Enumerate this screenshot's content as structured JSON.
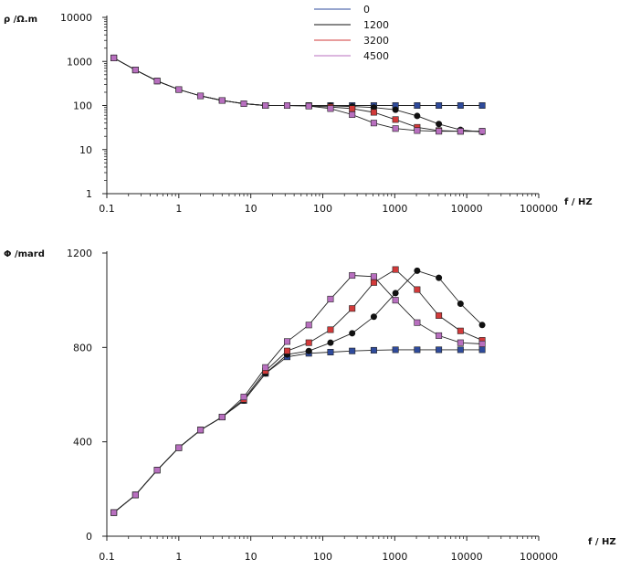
{
  "legend": [
    {
      "label": "0",
      "color": "#2f4b9c"
    },
    {
      "label": "1200",
      "color": "#111111"
    },
    {
      "label": "3200",
      "color": "#d23a3a"
    },
    {
      "label": "4500",
      "color": "#b86fbf"
    }
  ],
  "chart_data": [
    {
      "type": "line",
      "xscale": "log",
      "yscale": "log",
      "ylabel": "ρ /Ω.m",
      "xlabel": "f / HZ",
      "xlim": [
        0.1,
        100000
      ],
      "ylim": [
        1,
        10000
      ],
      "xtick_labels": [
        "0.1",
        "1",
        "10",
        "100",
        "1000",
        "10000",
        "100000"
      ],
      "ytick_labels": [
        "10000",
        "1000",
        "100",
        "10",
        "1"
      ],
      "series": [
        {
          "name": "0",
          "color": "#2f4b9c",
          "marker": "square",
          "x": [
            0.125,
            0.25,
            0.5,
            1,
            2,
            4,
            8,
            16,
            32,
            64,
            128,
            256,
            512,
            1024,
            2048,
            4096,
            8192,
            16384
          ],
          "y": [
            1200,
            640,
            360,
            230,
            165,
            130,
            110,
            100,
            100,
            100,
            100,
            100,
            100,
            100,
            100,
            100,
            100,
            100
          ]
        },
        {
          "name": "1200",
          "color": "#111111",
          "marker": "circle",
          "x": [
            0.125,
            0.25,
            0.5,
            1,
            2,
            4,
            8,
            16,
            32,
            64,
            128,
            256,
            512,
            1024,
            2048,
            4096,
            8192,
            16384
          ],
          "y": [
            1200,
            640,
            360,
            230,
            165,
            130,
            110,
            100,
            100,
            100,
            98,
            95,
            90,
            80,
            58,
            38,
            28,
            25
          ]
        },
        {
          "name": "3200",
          "color": "#d23a3a",
          "marker": "square",
          "x": [
            0.125,
            0.25,
            0.5,
            1,
            2,
            4,
            8,
            16,
            32,
            64,
            128,
            256,
            512,
            1024,
            2048,
            4096,
            8192,
            16384
          ],
          "y": [
            1200,
            640,
            360,
            230,
            165,
            130,
            110,
            100,
            100,
            98,
            92,
            85,
            70,
            48,
            32,
            27,
            26,
            26
          ]
        },
        {
          "name": "4500",
          "color": "#b86fbf",
          "marker": "square",
          "x": [
            0.125,
            0.25,
            0.5,
            1,
            2,
            4,
            8,
            16,
            32,
            64,
            128,
            256,
            512,
            1024,
            2048,
            4096,
            8192,
            16384
          ],
          "y": [
            1200,
            640,
            360,
            230,
            165,
            130,
            110,
            100,
            100,
            97,
            85,
            62,
            40,
            30,
            27,
            26,
            26,
            26
          ]
        }
      ]
    },
    {
      "type": "line",
      "xscale": "log",
      "yscale": "linear",
      "ylabel": "Φ /mard",
      "xlabel": "f / HZ",
      "xlim": [
        0.1,
        100000
      ],
      "ylim": [
        0,
        1200
      ],
      "xtick_labels": [
        "0.1",
        "1",
        "10",
        "100",
        "1000",
        "10000",
        "100000"
      ],
      "ytick_labels": [
        "1200",
        "800",
        "400",
        "0"
      ],
      "series": [
        {
          "name": "0",
          "color": "#2f4b9c",
          "marker": "square",
          "x": [
            0.125,
            0.25,
            0.5,
            1,
            2,
            4,
            8,
            16,
            32,
            64,
            128,
            256,
            512,
            1024,
            2048,
            4096,
            8192,
            16384
          ],
          "y": [
            100,
            175,
            280,
            375,
            450,
            505,
            575,
            690,
            760,
            775,
            780,
            785,
            788,
            790,
            790,
            790,
            790,
            790
          ]
        },
        {
          "name": "1200",
          "color": "#111111",
          "marker": "circle",
          "x": [
            0.125,
            0.25,
            0.5,
            1,
            2,
            4,
            8,
            16,
            32,
            64,
            128,
            256,
            512,
            1024,
            2048,
            4096,
            8192,
            16384
          ],
          "y": [
            100,
            175,
            280,
            375,
            450,
            505,
            575,
            690,
            770,
            785,
            820,
            860,
            930,
            1030,
            1125,
            1095,
            985,
            895
          ]
        },
        {
          "name": "3200",
          "color": "#d23a3a",
          "marker": "square",
          "x": [
            0.125,
            0.25,
            0.5,
            1,
            2,
            4,
            8,
            16,
            32,
            64,
            128,
            256,
            512,
            1024,
            2048,
            4096,
            8192,
            16384
          ],
          "y": [
            100,
            175,
            280,
            375,
            450,
            505,
            580,
            700,
            785,
            820,
            875,
            965,
            1075,
            1130,
            1045,
            935,
            870,
            830
          ]
        },
        {
          "name": "4500",
          "color": "#b86fbf",
          "marker": "square",
          "x": [
            0.125,
            0.25,
            0.5,
            1,
            2,
            4,
            8,
            16,
            32,
            64,
            128,
            256,
            512,
            1024,
            2048,
            4096,
            8192,
            16384
          ],
          "y": [
            100,
            175,
            280,
            375,
            450,
            505,
            590,
            715,
            825,
            895,
            1005,
            1105,
            1100,
            1000,
            905,
            850,
            820,
            815
          ]
        }
      ]
    }
  ]
}
